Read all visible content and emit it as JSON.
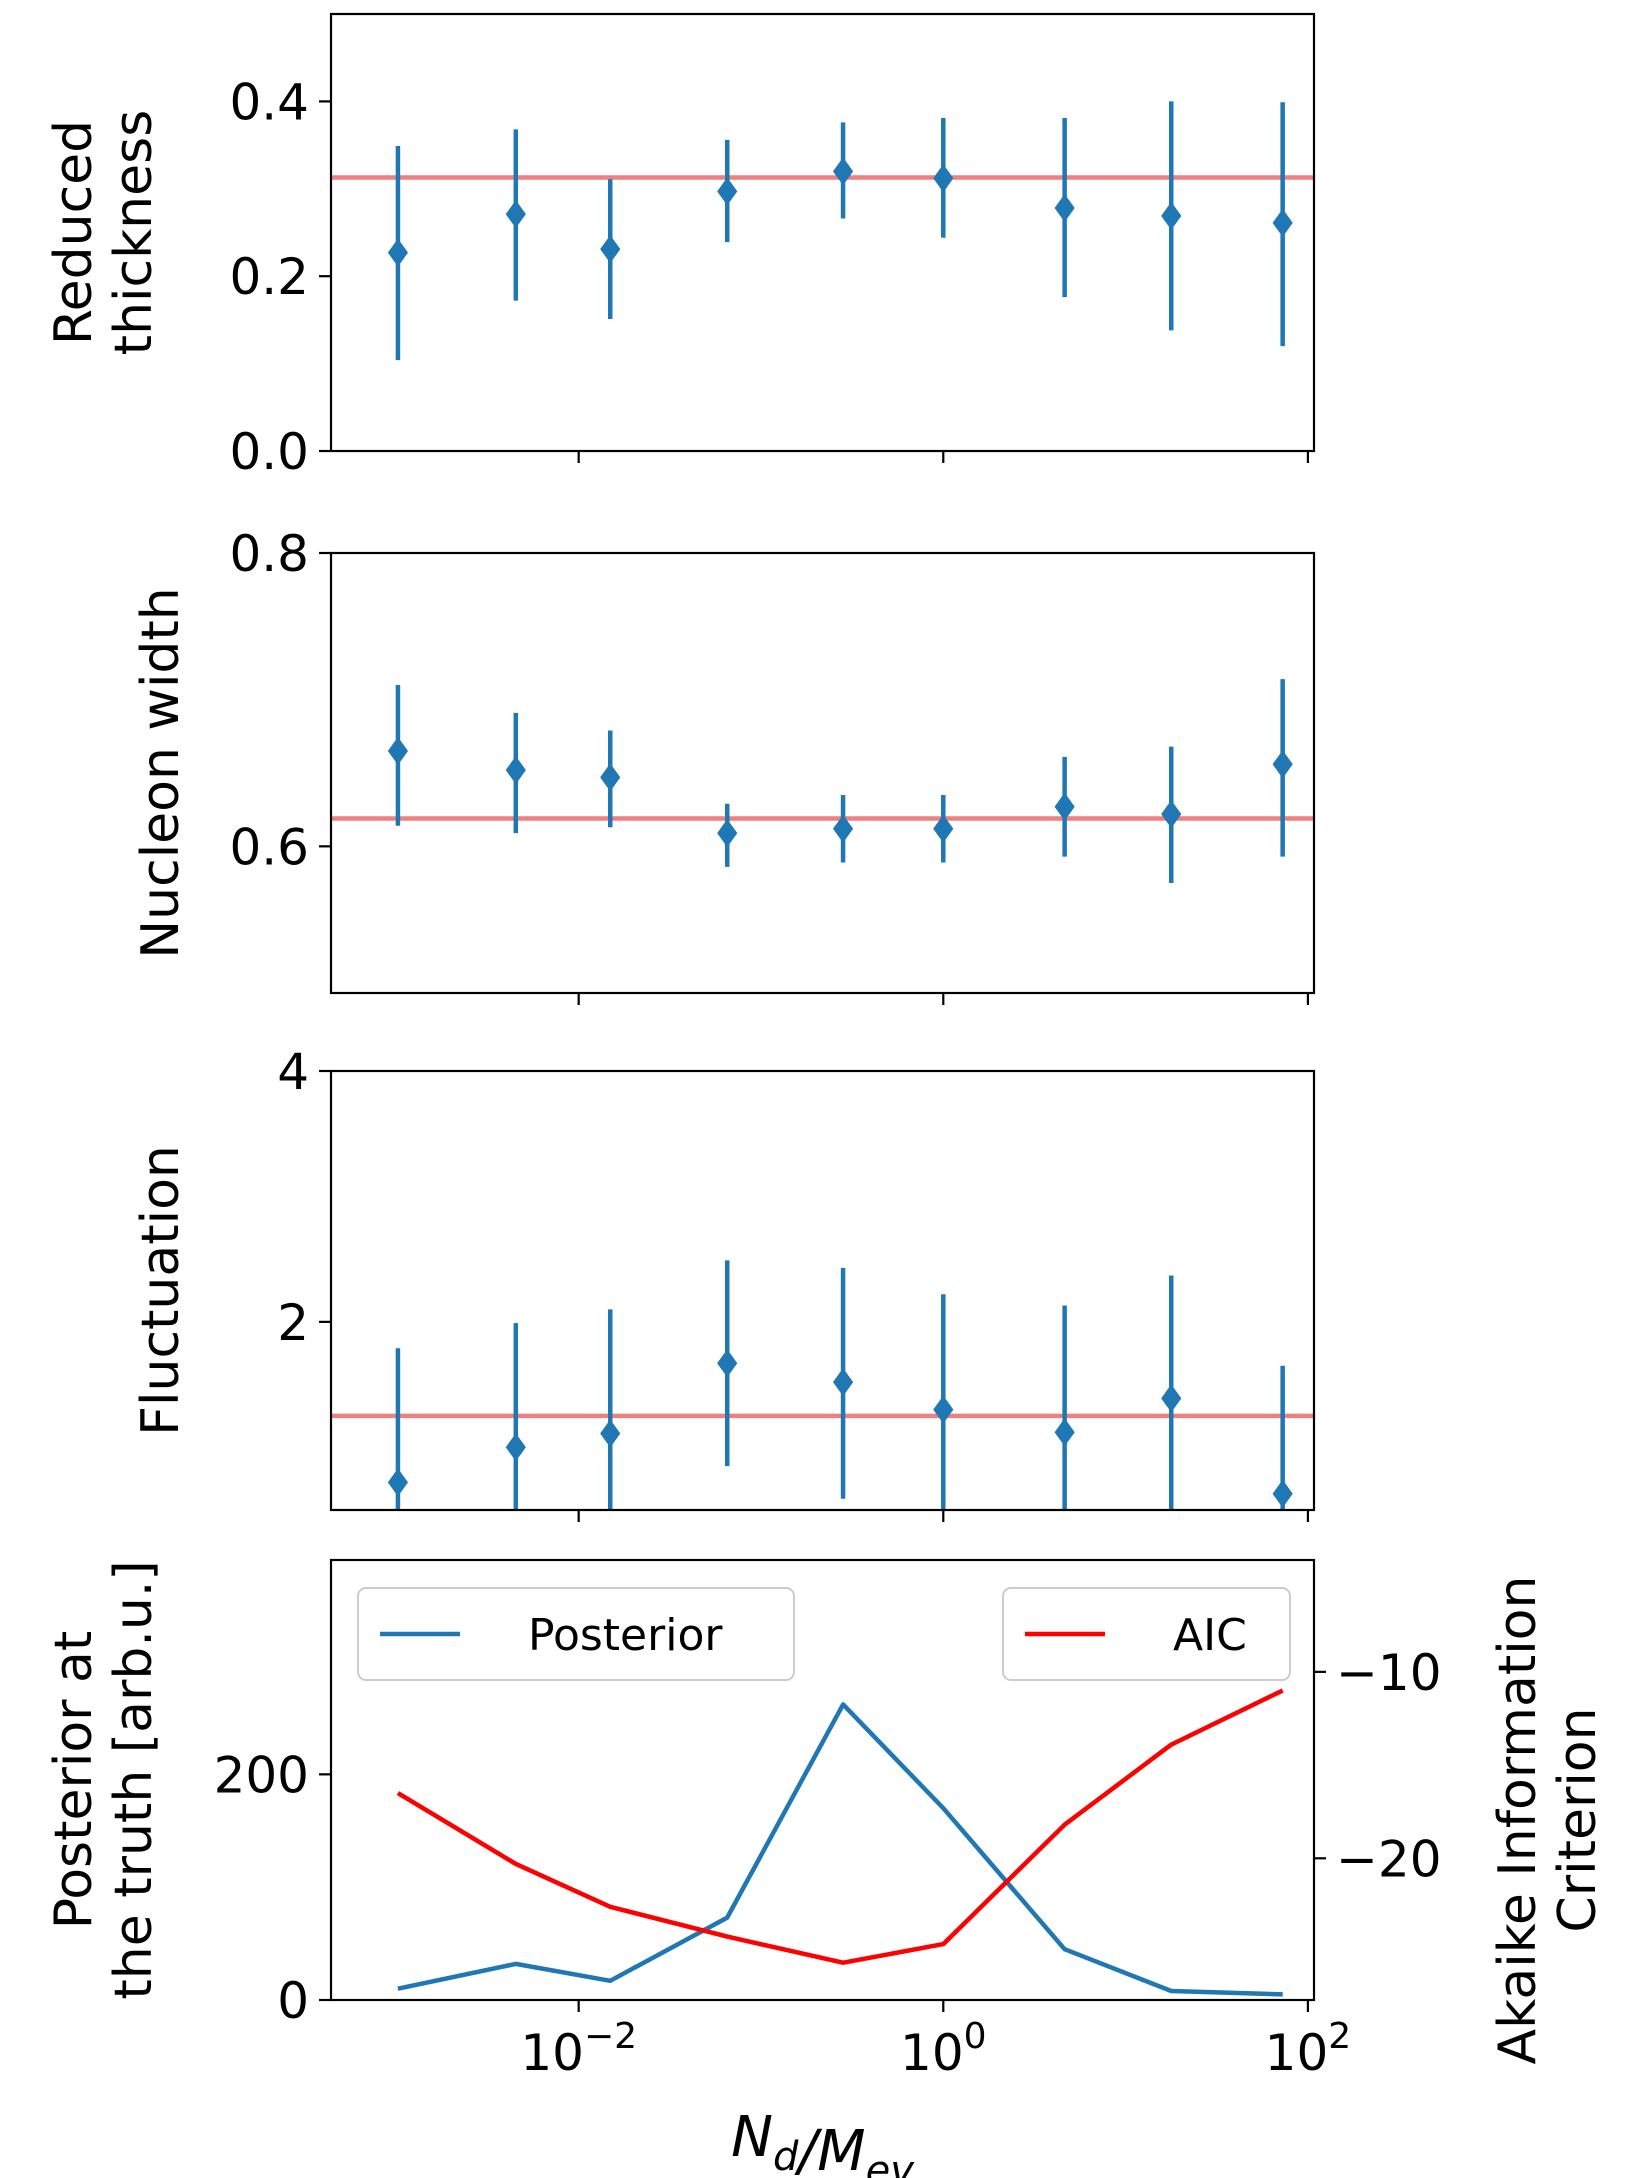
{
  "chart_data": [
    {
      "type": "scatter",
      "ylabel_lines": [
        "Reduced",
        "thickness"
      ],
      "ylim": [
        0.0,
        0.5
      ],
      "yticks": [
        0.0,
        0.2,
        0.4
      ],
      "ytick_labels": [
        "0.0",
        "0.2",
        "0.4"
      ],
      "truth": 0.313,
      "series": [
        {
          "x": [
            0.00102,
            0.00452,
            0.0149,
            0.0653,
            0.282,
            1.0,
            4.63,
            17.8,
            72.7
          ],
          "y": [
            0.227,
            0.271,
            0.231,
            0.297,
            0.32,
            0.312,
            0.278,
            0.269,
            0.261
          ],
          "yerr_low": [
            0.104,
            0.172,
            0.151,
            0.239,
            0.266,
            0.244,
            0.176,
            0.138,
            0.12
          ],
          "yerr_high": [
            0.349,
            0.368,
            0.311,
            0.356,
            0.376,
            0.381,
            0.381,
            0.4,
            0.399
          ]
        }
      ]
    },
    {
      "type": "scatter",
      "ylabel_lines": [
        "Nucleon width"
      ],
      "ylim": [
        0.5,
        0.8
      ],
      "yticks": [
        0.6,
        0.8
      ],
      "ytick_labels": [
        "0.6",
        "0.8"
      ],
      "truth": 0.619,
      "series": [
        {
          "x": [
            0.00102,
            0.00452,
            0.0149,
            0.0653,
            0.282,
            1.0,
            4.63,
            17.8,
            72.7
          ],
          "y": [
            0.665,
            0.652,
            0.647,
            0.609,
            0.612,
            0.612,
            0.627,
            0.622,
            0.656
          ],
          "yerr_low": [
            0.614,
            0.609,
            0.613,
            0.586,
            0.589,
            0.589,
            0.593,
            0.575,
            0.593
          ],
          "yerr_high": [
            0.71,
            0.691,
            0.679,
            0.629,
            0.635,
            0.635,
            0.661,
            0.668,
            0.714
          ]
        }
      ]
    },
    {
      "type": "scatter",
      "ylabel_lines": [
        "Fluctuation"
      ],
      "ylim": [
        0.5,
        4.0
      ],
      "yticks": [
        2,
        4
      ],
      "ytick_labels": [
        "2",
        "4"
      ],
      "truth": 1.25,
      "series": [
        {
          "x": [
            0.00102,
            0.00452,
            0.0149,
            0.0653,
            0.282,
            1.0,
            4.63,
            17.8,
            72.7
          ],
          "y": [
            0.72,
            1.0,
            1.11,
            1.67,
            1.52,
            1.3,
            1.12,
            1.39,
            0.63
          ],
          "yerr_low": [
            0.5,
            0.5,
            0.5,
            0.85,
            0.59,
            0.5,
            0.5,
            0.5,
            0.5
          ],
          "yerr_high": [
            1.79,
            1.99,
            2.1,
            2.49,
            2.43,
            2.22,
            2.13,
            2.37,
            1.65
          ]
        }
      ]
    },
    {
      "type": "line",
      "ylabel_lines": [
        "Posterior at",
        "the truth [arb.u.]"
      ],
      "y2label_lines": [
        "Akaike Information",
        "Criterion"
      ],
      "xlabel": "N_d/M_ev",
      "xscale": "log",
      "xlim": [
        0.000438,
        108
      ],
      "xticks": [
        0.01,
        1,
        100
      ],
      "xtick_labels": [
        {
          "base": "10",
          "exp": "−2"
        },
        {
          "base": "10",
          "exp": "0"
        },
        {
          "base": "10",
          "exp": "2"
        }
      ],
      "ylim": [
        0,
        390
      ],
      "yticks": [
        0,
        200
      ],
      "ytick_labels": [
        "0",
        "200"
      ],
      "y2lim": [
        -27.6,
        -4.0
      ],
      "y2ticks": [
        -20,
        -10
      ],
      "y2tick_labels": [
        "−20",
        "−10"
      ],
      "legend_left": "top-left",
      "legend_right": "top-right",
      "series": [
        {
          "name": "Posterior",
          "axis": "left",
          "x": [
            0.00102,
            0.00452,
            0.0149,
            0.0653,
            0.282,
            1.0,
            4.63,
            17.8,
            72.7
          ],
          "y": [
            10,
            32,
            17,
            73,
            262,
            170,
            45,
            8,
            5
          ]
        },
        {
          "name": "AIC",
          "axis": "right",
          "x": [
            0.00102,
            0.00452,
            0.0149,
            0.0653,
            0.282,
            1.0,
            4.63,
            17.8,
            72.7
          ],
          "y": [
            -16.5,
            -20.3,
            -22.6,
            -24.2,
            -25.6,
            -24.6,
            -18.2,
            -13.9,
            -11.0
          ]
        }
      ]
    }
  ],
  "colors": {
    "marker": "#1f77b4",
    "truth_line": "#f08080",
    "posterior_line": "#1f77b4",
    "aic_line": "#ff0000"
  }
}
